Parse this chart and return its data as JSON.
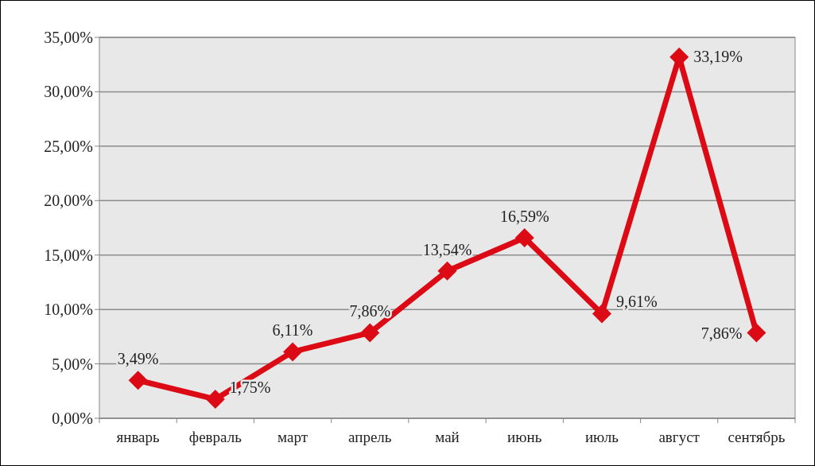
{
  "chart_data": {
    "type": "line",
    "categories": [
      "январь",
      "февраль",
      "март",
      "апрель",
      "май",
      "июнь",
      "июль",
      "август",
      "сентябрь"
    ],
    "series": [
      {
        "color": "#dc0a14",
        "values": [
          3.49,
          1.75,
          6.11,
          7.86,
          13.54,
          16.59,
          9.61,
          33.19,
          7.86
        ],
        "value_labels": [
          "3,49%",
          "1,75%",
          "6,11%",
          "7,86%",
          "13,54%",
          "16,59%",
          "9,61%",
          "33,19%",
          "7,86%"
        ]
      }
    ],
    "ylim": [
      0,
      35
    ],
    "yticks": [
      {
        "value": 0,
        "label": "0,00%"
      },
      {
        "value": 5,
        "label": "5,00%"
      },
      {
        "value": 10,
        "label": "10,00%"
      },
      {
        "value": 15,
        "label": "15,00%"
      },
      {
        "value": 20,
        "label": "20,00%"
      },
      {
        "value": 25,
        "label": "25,00%"
      },
      {
        "value": 30,
        "label": "30,00%"
      },
      {
        "value": 35,
        "label": "35,00%"
      }
    ],
    "grid": "y",
    "marker": "diamond",
    "line_style": "solid"
  }
}
